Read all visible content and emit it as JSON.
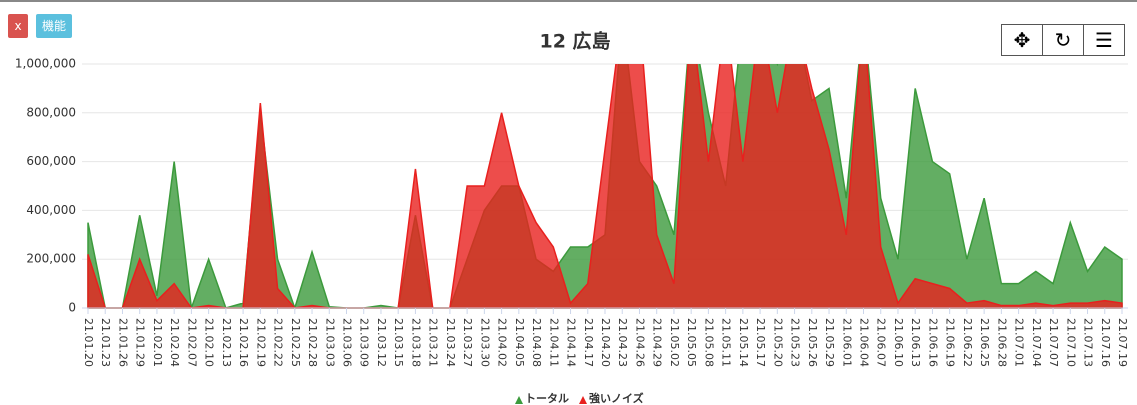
{
  "ui": {
    "close_button": "x",
    "feature_button": "機能"
  },
  "chart_data": {
    "type": "area",
    "title": "12 広島",
    "categories": [
      "21.01.20",
      "21.01.23",
      "21.01.26",
      "21.01.29",
      "21.02.01",
      "21.02.04",
      "21.02.07",
      "21.02.10",
      "21.02.13",
      "21.02.16",
      "21.02.19",
      "21.02.22",
      "21.02.25",
      "21.02.28",
      "21.03.03",
      "21.03.06",
      "21.03.09",
      "21.03.12",
      "21.03.15",
      "21.03.18",
      "21.03.21",
      "21.03.24",
      "21.03.27",
      "21.03.30",
      "21.04.02",
      "21.04.05",
      "21.04.08",
      "21.04.11",
      "21.04.14",
      "21.04.17",
      "21.04.20",
      "21.04.23",
      "21.04.26",
      "21.04.29",
      "21.05.02",
      "21.05.05",
      "21.05.08",
      "21.05.11",
      "21.05.14",
      "21.05.17",
      "21.05.20",
      "21.05.23",
      "21.05.26",
      "21.05.29",
      "21.06.01",
      "21.06.04",
      "21.06.07",
      "21.06.10",
      "21.06.13",
      "21.06.16",
      "21.06.19",
      "21.06.22",
      "21.06.25",
      "21.06.28",
      "21.07.01",
      "21.07.04",
      "21.07.07",
      "21.07.10",
      "21.07.13",
      "21.07.16",
      "21.07.19"
    ],
    "series": [
      {
        "name": "トータル",
        "color": "#3c9a3c",
        "values": [
          350000,
          0,
          0,
          380000,
          50000,
          600000,
          0,
          200000,
          0,
          20000,
          800000,
          200000,
          0,
          230000,
          5000,
          0,
          0,
          10000,
          0,
          380000,
          0,
          0,
          200000,
          400000,
          500000,
          500000,
          200000,
          150000,
          250000,
          250000,
          300000,
          1200000,
          600000,
          500000,
          300000,
          1200000,
          800000,
          500000,
          1200000,
          1200000,
          1000000,
          1200000,
          850000,
          900000,
          450000,
          1200000,
          450000,
          200000,
          900000,
          600000,
          550000,
          200000,
          450000,
          100000,
          100000,
          150000,
          100000,
          350000,
          150000,
          250000,
          200000
        ]
      },
      {
        "name": "強いノイズ",
        "color": "#e8201e",
        "values": [
          220000,
          0,
          0,
          200000,
          30000,
          100000,
          0,
          10000,
          0,
          0,
          840000,
          80000,
          0,
          10000,
          0,
          0,
          0,
          0,
          0,
          570000,
          0,
          0,
          500000,
          500000,
          800000,
          500000,
          350000,
          250000,
          20000,
          100000,
          650000,
          1200000,
          1200000,
          300000,
          100000,
          1200000,
          600000,
          1200000,
          600000,
          1200000,
          800000,
          1200000,
          900000,
          650000,
          300000,
          1200000,
          250000,
          20000,
          120000,
          100000,
          80000,
          20000,
          30000,
          10000,
          10000,
          20000,
          10000,
          20000,
          20000,
          30000,
          20000
        ]
      }
    ],
    "ylim": [
      0,
      1000000
    ],
    "yticks": [
      0,
      {
        "value": 200000,
        "label": "200,000"
      },
      {
        "value": 400000,
        "label": "400,000"
      },
      {
        "value": 600000,
        "label": "600,000"
      },
      {
        "value": 800000,
        "label": "800,000"
      },
      {
        "value": 1000000,
        "label": "1,000,000"
      }
    ],
    "grid": true,
    "legend": "bottom"
  }
}
